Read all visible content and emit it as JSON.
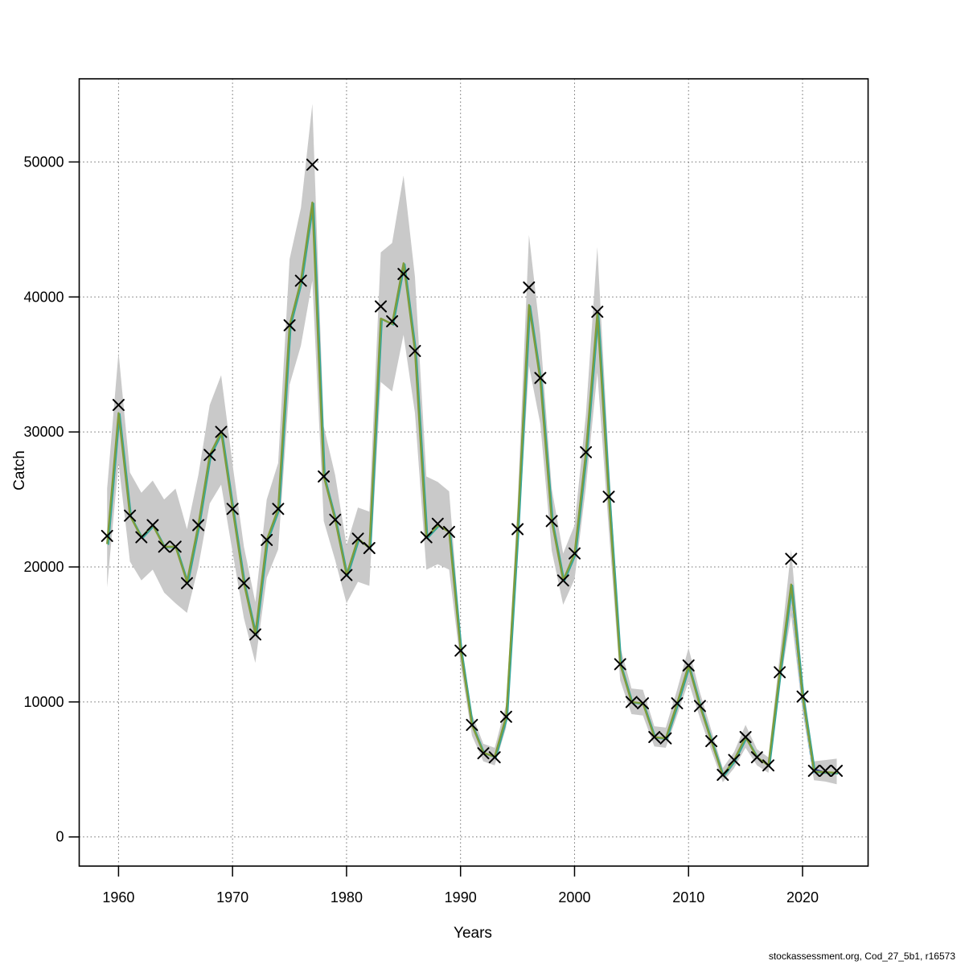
{
  "footer": "stockassessment.org, Cod_27_5b1, r16573",
  "chart_data": {
    "type": "line",
    "title": "",
    "xlabel": "Years",
    "ylabel": "Catch",
    "grid": "dotted",
    "legend": "none",
    "xlim": [
      1956.55,
      2025.75
    ],
    "ylim": [
      -2160,
      56160
    ],
    "x_ticks": [
      1960,
      1970,
      1980,
      1990,
      2000,
      2010,
      2020
    ],
    "y_ticks": [
      0,
      10000,
      20000,
      30000,
      40000,
      50000
    ],
    "years": [
      1959,
      1960,
      1961,
      1962,
      1963,
      1964,
      1965,
      1966,
      1967,
      1968,
      1969,
      1970,
      1971,
      1972,
      1973,
      1974,
      1975,
      1976,
      1977,
      1978,
      1979,
      1980,
      1981,
      1982,
      1983,
      1984,
      1985,
      1986,
      1987,
      1988,
      1989,
      1990,
      1991,
      1992,
      1993,
      1994,
      1995,
      1996,
      1997,
      1998,
      1999,
      2000,
      2001,
      2002,
      2003,
      2004,
      2005,
      2006,
      2007,
      2008,
      2009,
      2010,
      2011,
      2012,
      2013,
      2014,
      2015,
      2016,
      2017,
      2018,
      2019,
      2020,
      2021,
      2022,
      2023
    ],
    "series": [
      {
        "name": "observed-catches",
        "style": "x-markers",
        "values": [
          22300,
          32000,
          23800,
          22200,
          23100,
          21500,
          21500,
          18800,
          23100,
          28300,
          30000,
          24300,
          18800,
          15000,
          22000,
          24300,
          37900,
          41200,
          49800,
          26700,
          23500,
          19400,
          22100,
          21400,
          39300,
          38200,
          41700,
          36000,
          22200,
          23200,
          22600,
          13800,
          8300,
          6200,
          5900,
          8900,
          22800,
          40700,
          34000,
          23400,
          19000,
          21000,
          28500,
          38900,
          25200,
          12800,
          10000,
          9900,
          7400,
          7300,
          9900,
          12700,
          9700,
          7100,
          4600,
          5700,
          7400,
          5900,
          5300,
          12200,
          20600,
          10400,
          4900,
          4900,
          4900
        ]
      },
      {
        "name": "fitted-catch",
        "style": "line",
        "values": [
          21700,
          31400,
          23800,
          22200,
          23100,
          21500,
          21500,
          18900,
          23100,
          28300,
          30000,
          24300,
          18800,
          15000,
          22000,
          24300,
          37900,
          41200,
          47000,
          26700,
          23500,
          19400,
          22100,
          21400,
          38400,
          38000,
          42500,
          36000,
          22200,
          23100,
          22600,
          13850,
          8300,
          6240,
          5940,
          8920,
          22830,
          39400,
          33800,
          23400,
          19000,
          21000,
          28500,
          38800,
          25200,
          12800,
          10000,
          9900,
          7400,
          7300,
          9900,
          12700,
          9700,
          7100,
          4550,
          5700,
          7400,
          5900,
          5300,
          12200,
          18700,
          10400,
          4850,
          4800,
          4750
        ]
      }
    ],
    "band": {
      "name": "confidence-band",
      "upper": [
        25800,
        35900,
        27000,
        25500,
        26400,
        25000,
        25800,
        22800,
        26800,
        32000,
        34200,
        27600,
        21500,
        17400,
        25000,
        27700,
        42800,
        46600,
        54300,
        30400,
        26800,
        21600,
        24400,
        24100,
        43300,
        44000,
        49000,
        41500,
        26700,
        26300,
        25600,
        14900,
        9100,
        6900,
        6600,
        9800,
        24600,
        44600,
        37200,
        25800,
        21000,
        23100,
        31300,
        43700,
        27800,
        14100,
        11000,
        10900,
        8200,
        8100,
        10900,
        14000,
        10700,
        7900,
        5100,
        6300,
        8300,
        6500,
        5900,
        13400,
        21300,
        11600,
        5600,
        5700,
        5800
      ],
      "lower": [
        18500,
        27700,
        20400,
        19000,
        19800,
        18100,
        17300,
        16600,
        20000,
        24700,
        26100,
        21100,
        16200,
        12900,
        19200,
        21300,
        33500,
        36400,
        41200,
        23400,
        20500,
        17300,
        18900,
        18600,
        33700,
        33000,
        37200,
        31400,
        19800,
        20200,
        19800,
        12800,
        7500,
        5600,
        5300,
        8100,
        21100,
        34900,
        30600,
        21200,
        17200,
        19100,
        25900,
        34400,
        22800,
        11600,
        9100,
        9000,
        6700,
        6600,
        9000,
        11500,
        8800,
        6400,
        4050,
        5100,
        6600,
        5300,
        4750,
        11100,
        16400,
        9300,
        4200,
        4100,
        3900
      ]
    },
    "extra_lines": [
      {
        "name": "alt-fit-green",
        "color_key": "green",
        "years": [
          2017,
          2018,
          2019,
          2020
        ],
        "values": [
          5200,
          12050,
          18600,
          10350
        ],
        "width": 2.0,
        "dashed": false
      },
      {
        "name": "forecast-skyblue",
        "color_key": "sky",
        "years": [
          2019,
          2020,
          2021
        ],
        "values": [
          18500,
          10250,
          4700
        ],
        "width": 3.4,
        "dashed": true
      },
      {
        "name": "forecast-navy",
        "color_key": "navy",
        "years": [
          2021,
          2022
        ],
        "values": [
          5000,
          4750
        ],
        "width": 2.6,
        "dashed": false
      }
    ],
    "colors": {
      "band": "#c9c9c9",
      "fit": "#7f9c3a",
      "teal": "#35a79b",
      "green": "#1d8a47",
      "sky": "#85c1ea",
      "navy": "#2b2f96",
      "marker": "#000000",
      "grid": "#707070",
      "axis": "#000000"
    }
  }
}
